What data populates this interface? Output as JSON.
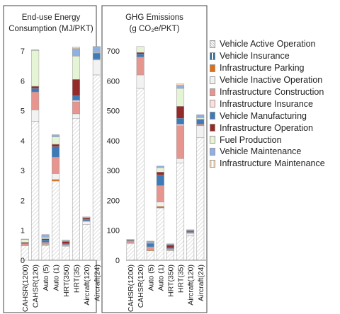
{
  "chart_data": [
    {
      "type": "bar",
      "stacked": true,
      "title": "End-use Energy Consumption (MJ/PKT)",
      "title_lines": [
        "End-use Energy",
        "Consumption (MJ/PKT)"
      ],
      "categories": [
        "CAHSR(1200)",
        "CAHSR(120)",
        "Auto (5)",
        "Auto (1)",
        "HRT(350)",
        "HRT(35)",
        "Aircraft(120)",
        "Aircraft(24)"
      ],
      "ylim": [
        0,
        7.5
      ],
      "yticks": [
        0,
        1,
        2,
        3,
        4,
        5,
        6,
        7
      ],
      "series": [
        {
          "name": "Vehicle Active Operation",
          "values": [
            0.48,
            4.65,
            0.5,
            2.65,
            0.47,
            4.75,
            1.2,
            6.2
          ]
        },
        {
          "name": "Vehicle Insurance",
          "values": [
            0,
            0,
            0,
            0,
            0,
            0,
            0,
            0
          ]
        },
        {
          "name": "Infrastructure Parking",
          "values": [
            0,
            0,
            0.03,
            0.05,
            0,
            0,
            0,
            0
          ]
        },
        {
          "name": "Vehicle Inactive Operation",
          "values": [
            0.02,
            0.38,
            0.02,
            0.2,
            0.02,
            0.15,
            0.1,
            0.5
          ]
        },
        {
          "name": "Infrastructure Construction",
          "values": [
            0.05,
            0.6,
            0.05,
            0.55,
            0.04,
            0.4,
            0.02,
            0.03
          ]
        },
        {
          "name": "Infrastructure Insurance",
          "values": [
            0,
            0,
            0,
            0,
            0,
            0.05,
            0,
            0
          ]
        },
        {
          "name": "Vehicle Manufacturing",
          "values": [
            0.02,
            0.12,
            0.08,
            0.35,
            0.02,
            0.15,
            0.05,
            0.2
          ]
        },
        {
          "name": "Infrastructure Operation",
          "values": [
            0.03,
            0.07,
            0.04,
            0.08,
            0.08,
            0.55,
            0.05,
            0
          ]
        },
        {
          "name": "Fuel Production",
          "values": [
            0.1,
            1.2,
            0.05,
            0.25,
            0.03,
            0.78,
            0.02,
            0.02
          ]
        },
        {
          "name": "Vehicle Maintenance",
          "values": [
            0.01,
            0.02,
            0.09,
            0.07,
            0.02,
            0.25,
            0.01,
            0.2
          ]
        },
        {
          "name": "Infrastructure Maintenance",
          "values": [
            0,
            0,
            0,
            0,
            0,
            0.05,
            0,
            0
          ]
        }
      ]
    },
    {
      "type": "bar",
      "stacked": true,
      "title": "GHG Emissions (g CO2e/PKT)",
      "title_lines": [
        "GHG Emissions",
        "(g CO₂e/PKT)"
      ],
      "categories": [
        "CAHSR(1200)",
        "CAHSR(120)",
        "Auto (5)",
        "Auto (1)",
        "HRT(350)",
        "HRT(35)",
        "Aircraft(120)",
        "Aircraft(24)"
      ],
      "ylim": [
        0,
        750
      ],
      "yticks": [
        0,
        100,
        200,
        300,
        400,
        500,
        600,
        700
      ],
      "series": [
        {
          "name": "Vehicle Active Operation",
          "values": [
            55,
            575,
            32,
            175,
            32,
            325,
            82,
            410
          ]
        },
        {
          "name": "Vehicle Insurance",
          "values": [
            0,
            0,
            0,
            0,
            0,
            0,
            0,
            0
          ]
        },
        {
          "name": "Infrastructure Parking",
          "values": [
            0,
            0,
            3,
            5,
            0,
            0,
            0,
            0
          ]
        },
        {
          "name": "Vehicle Inactive Operation",
          "values": [
            3,
            45,
            2,
            15,
            2,
            15,
            8,
            40
          ]
        },
        {
          "name": "Infrastructure Construction",
          "values": [
            6,
            60,
            8,
            55,
            5,
            110,
            3,
            5
          ]
        },
        {
          "name": "Infrastructure Insurance",
          "values": [
            0,
            0,
            0,
            0,
            0,
            5,
            0,
            0
          ]
        },
        {
          "name": "Vehicle Manufacturing",
          "values": [
            2,
            10,
            10,
            35,
            2,
            20,
            5,
            15
          ]
        },
        {
          "name": "Infrastructure Operation",
          "values": [
            2,
            5,
            2,
            10,
            10,
            40,
            2,
            2
          ]
        },
        {
          "name": "Fuel Production",
          "values": [
            2,
            20,
            2,
            15,
            2,
            60,
            1,
            5
          ]
        },
        {
          "name": "Vehicle Maintenance",
          "values": [
            0,
            0,
            5,
            5,
            2,
            10,
            1,
            10
          ]
        },
        {
          "name": "Infrastructure Maintenance",
          "values": [
            0,
            0,
            0,
            0,
            0,
            5,
            0,
            0
          ]
        }
      ]
    }
  ],
  "legend": [
    {
      "label": "Vehicle Active Operation",
      "color": "#ececec",
      "pattern": "hatch"
    },
    {
      "label": "Vehicle Insurance",
      "color": "#1f6e9e",
      "pattern": "stripe"
    },
    {
      "label": "Infrastructure  Parking",
      "color": "#e46c0a",
      "pattern": "solid"
    },
    {
      "label": "Vehicle Inactive Operation",
      "color": "#f2f2f2",
      "pattern": "solid"
    },
    {
      "label": "Infrastructure  Construction",
      "color": "#e6958f",
      "pattern": "solid"
    },
    {
      "label": "Infrastructure  Insurance",
      "color": "#fbe0dc",
      "pattern": "solid"
    },
    {
      "label": "Vehicle Manufacturing",
      "color": "#3d7ab8",
      "pattern": "solid"
    },
    {
      "label": "Infrastructure  Operation",
      "color": "#952a2a",
      "pattern": "solid"
    },
    {
      "label": "Fuel Production",
      "color": "#e6f4d6",
      "pattern": "solid"
    },
    {
      "label": "Vehicle Maintenance",
      "color": "#8eb0e3",
      "pattern": "solid"
    },
    {
      "label": "Infrastructure  Maintenance",
      "color": "#fbd9b0",
      "pattern": "stripe"
    }
  ]
}
